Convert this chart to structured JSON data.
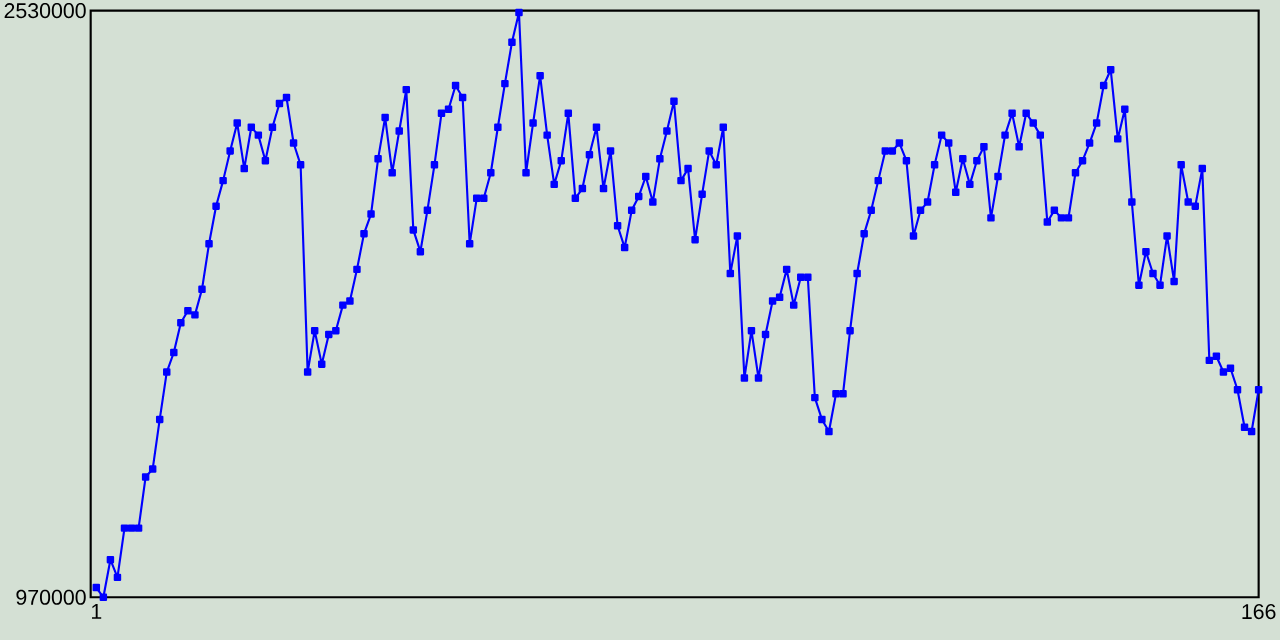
{
  "chart_data": {
    "type": "line",
    "color": "#0000ff",
    "marker": "square",
    "line_style": "solid",
    "grid": false,
    "x": [
      1,
      2,
      3,
      4,
      5,
      6,
      7,
      8,
      9,
      10,
      11,
      12,
      13,
      14,
      15,
      16,
      17,
      18,
      19,
      20,
      21,
      22,
      23,
      24,
      25,
      26,
      27,
      28,
      29,
      30,
      31,
      32,
      33,
      34,
      35,
      36,
      37,
      38,
      39,
      40,
      41,
      42,
      43,
      44,
      45,
      46,
      47,
      48,
      49,
      50,
      51,
      52,
      53,
      54,
      55,
      56,
      57,
      58,
      59,
      60,
      61,
      62,
      63,
      64,
      65,
      66,
      67,
      68,
      69,
      70,
      71,
      72,
      73,
      74,
      75,
      76,
      77,
      78,
      79,
      80,
      81,
      82,
      83,
      84,
      85,
      86,
      87,
      88,
      89,
      90,
      91,
      92,
      93,
      94,
      95,
      96,
      97,
      98,
      99,
      100,
      101,
      102,
      103,
      104,
      105,
      106,
      107,
      108,
      109,
      110,
      111,
      112,
      113,
      114,
      115,
      116,
      117,
      118,
      119,
      120,
      121,
      122,
      123,
      124,
      125,
      126,
      127,
      128,
      129,
      130,
      131,
      132,
      133,
      134,
      135,
      136,
      137,
      138,
      139,
      140,
      141,
      142,
      143,
      144,
      145,
      146,
      147,
      148,
      149,
      150,
      151,
      152,
      153,
      154,
      155,
      156,
      157,
      158,
      159,
      160,
      161,
      162,
      163,
      164,
      165,
      166
    ],
    "values": [
      996000,
      970000,
      1070000,
      1023000,
      1154000,
      1154000,
      1154000,
      1290000,
      1311000,
      1443000,
      1569000,
      1621000,
      1700000,
      1732000,
      1721000,
      1789000,
      1910000,
      2010000,
      2078000,
      2157000,
      2231000,
      2110000,
      2220000,
      2199000,
      2131000,
      2220000,
      2283000,
      2299000,
      2178000,
      2120000,
      1569000,
      1679000,
      1590000,
      1669000,
      1679000,
      1747000,
      1758000,
      1842000,
      1937000,
      1989000,
      2136000,
      2246000,
      2099000,
      2210000,
      2320000,
      1947000,
      1889000,
      1999000,
      2120000,
      2257000,
      2268000,
      2331000,
      2299000,
      1910000,
      2031000,
      2031000,
      2099000,
      2220000,
      2336000,
      2446000,
      2525000,
      2099000,
      2231000,
      2357000,
      2199000,
      2068000,
      2131000,
      2257000,
      2031000,
      2057000,
      2147000,
      2220000,
      2057000,
      2157000,
      1958000,
      1900000,
      1999000,
      2036000,
      2089000,
      2021000,
      2136000,
      2210000,
      2289000,
      2078000,
      2110000,
      1921000,
      2042000,
      2157000,
      2120000,
      2220000,
      1831000,
      1931000,
      1553000,
      1679000,
      1553000,
      1669000,
      1758000,
      1768000,
      1842000,
      1747000,
      1821000,
      1821000,
      1501000,
      1443000,
      1411000,
      1511000,
      1511000,
      1679000,
      1831000,
      1937000,
      1999000,
      2078000,
      2157000,
      2157000,
      2178000,
      2131000,
      1931000,
      1999000,
      2021000,
      2120000,
      2199000,
      2178000,
      2047000,
      2136000,
      2068000,
      2131000,
      2168000,
      1979000,
      2089000,
      2199000,
      2257000,
      2168000,
      2257000,
      2231000,
      2199000,
      1968000,
      1999000,
      1979000,
      1979000,
      2099000,
      2131000,
      2178000,
      2231000,
      2331000,
      2373000,
      2189000,
      2268000,
      2021000,
      1800000,
      1889000,
      1831000,
      1800000,
      1931000,
      1810000,
      2120000,
      2021000,
      2010000,
      2110000,
      1600000,
      1611000,
      1569000,
      1579000,
      1522000,
      1422000,
      1411000,
      1522000
    ],
    "xlim": [
      0.2,
      166
    ],
    "xticks": [
      1,
      166
    ],
    "ylim": [
      970000,
      2530000
    ],
    "yticks": [
      970000,
      2530000
    ]
  }
}
